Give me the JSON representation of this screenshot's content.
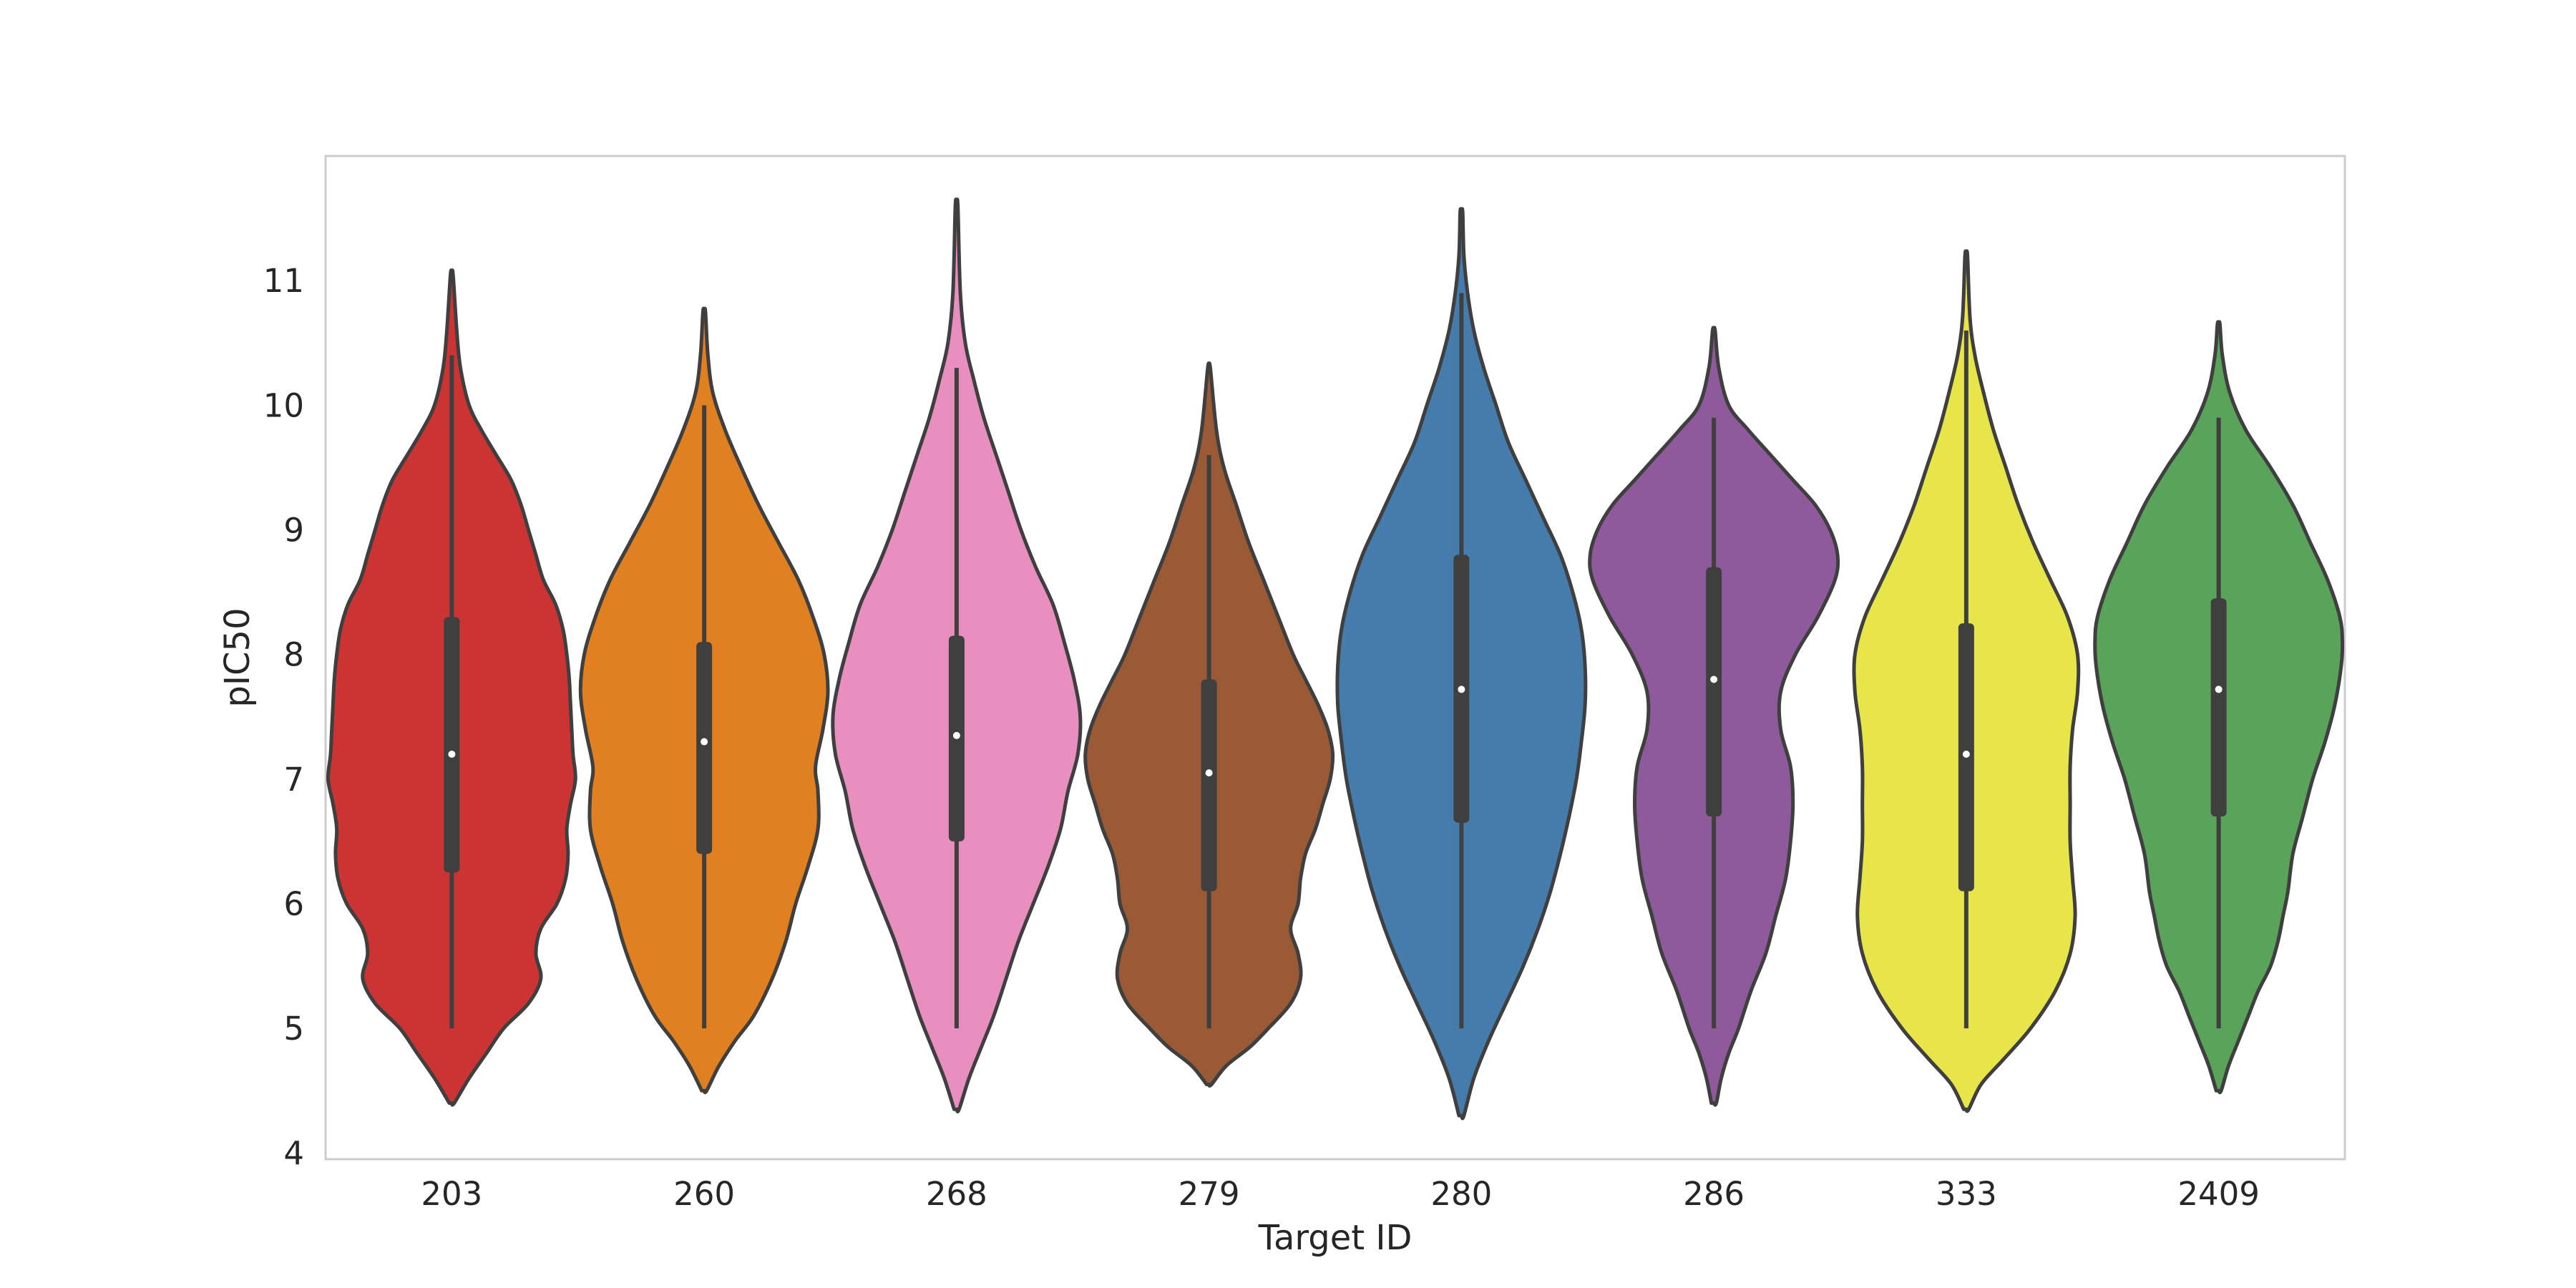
{
  "chart_data": {
    "type": "violin",
    "title": "",
    "xlabel": "Target ID",
    "ylabel": "pIC50",
    "ylim": [
      3.95,
      12.0
    ],
    "y_ticks": [
      4,
      5,
      6,
      7,
      8,
      9,
      10,
      11
    ],
    "grid": false,
    "legend": "none",
    "categories": [
      "203",
      "260",
      "268",
      "279",
      "280",
      "286",
      "333",
      "2409"
    ],
    "series": [
      {
        "category": "203",
        "color": "#cc3333",
        "min": 5.0,
        "q1": 6.25,
        "median": 7.2,
        "q3": 8.3,
        "max": 10.4,
        "density": [
          [
            4.4,
            0.02
          ],
          [
            4.6,
            0.14
          ],
          [
            4.8,
            0.28
          ],
          [
            5.0,
            0.42
          ],
          [
            5.2,
            0.62
          ],
          [
            5.4,
            0.72
          ],
          [
            5.6,
            0.68
          ],
          [
            5.8,
            0.72
          ],
          [
            6.0,
            0.85
          ],
          [
            6.2,
            0.92
          ],
          [
            6.4,
            0.94
          ],
          [
            6.6,
            0.93
          ],
          [
            6.8,
            0.96
          ],
          [
            7.0,
            1.0
          ],
          [
            7.2,
            0.98
          ],
          [
            7.4,
            0.97
          ],
          [
            7.6,
            0.96
          ],
          [
            7.8,
            0.95
          ],
          [
            8.0,
            0.93
          ],
          [
            8.2,
            0.9
          ],
          [
            8.4,
            0.84
          ],
          [
            8.6,
            0.74
          ],
          [
            8.8,
            0.68
          ],
          [
            9.0,
            0.62
          ],
          [
            9.2,
            0.56
          ],
          [
            9.4,
            0.48
          ],
          [
            9.6,
            0.36
          ],
          [
            9.8,
            0.24
          ],
          [
            10.0,
            0.14
          ],
          [
            10.3,
            0.07
          ],
          [
            10.6,
            0.04
          ],
          [
            11.05,
            0.01
          ]
        ]
      },
      {
        "category": "260",
        "color": "#e08020",
        "min": 5.0,
        "q1": 6.4,
        "median": 7.3,
        "q3": 8.1,
        "max": 10.0,
        "density": [
          [
            4.5,
            0.02
          ],
          [
            4.7,
            0.12
          ],
          [
            4.9,
            0.25
          ],
          [
            5.1,
            0.4
          ],
          [
            5.4,
            0.55
          ],
          [
            5.7,
            0.66
          ],
          [
            6.0,
            0.74
          ],
          [
            6.3,
            0.84
          ],
          [
            6.6,
            0.92
          ],
          [
            6.9,
            0.92
          ],
          [
            7.1,
            0.9
          ],
          [
            7.4,
            0.96
          ],
          [
            7.7,
            1.0
          ],
          [
            8.0,
            0.97
          ],
          [
            8.3,
            0.88
          ],
          [
            8.6,
            0.76
          ],
          [
            8.9,
            0.6
          ],
          [
            9.2,
            0.44
          ],
          [
            9.5,
            0.3
          ],
          [
            9.8,
            0.17
          ],
          [
            10.1,
            0.07
          ],
          [
            10.4,
            0.03
          ],
          [
            10.75,
            0.01
          ]
        ]
      },
      {
        "category": "268",
        "color": "#e88fbf",
        "min": 5.0,
        "q1": 6.5,
        "median": 7.35,
        "q3": 8.15,
        "max": 10.3,
        "density": [
          [
            4.35,
            0.02
          ],
          [
            4.6,
            0.1
          ],
          [
            4.85,
            0.2
          ],
          [
            5.1,
            0.3
          ],
          [
            5.4,
            0.4
          ],
          [
            5.7,
            0.5
          ],
          [
            6.0,
            0.62
          ],
          [
            6.3,
            0.74
          ],
          [
            6.6,
            0.84
          ],
          [
            6.9,
            0.9
          ],
          [
            7.2,
            0.98
          ],
          [
            7.5,
            1.0
          ],
          [
            7.8,
            0.95
          ],
          [
            8.1,
            0.87
          ],
          [
            8.4,
            0.78
          ],
          [
            8.7,
            0.64
          ],
          [
            9.0,
            0.52
          ],
          [
            9.3,
            0.42
          ],
          [
            9.6,
            0.32
          ],
          [
            9.9,
            0.22
          ],
          [
            10.2,
            0.14
          ],
          [
            10.5,
            0.07
          ],
          [
            10.9,
            0.03
          ],
          [
            11.6,
            0.01
          ]
        ]
      },
      {
        "category": "279",
        "color": "#9a5a35",
        "min": 5.0,
        "q1": 6.1,
        "median": 7.05,
        "q3": 7.8,
        "max": 9.6,
        "density": [
          [
            4.55,
            0.02
          ],
          [
            4.7,
            0.14
          ],
          [
            4.85,
            0.33
          ],
          [
            5.0,
            0.48
          ],
          [
            5.2,
            0.66
          ],
          [
            5.4,
            0.74
          ],
          [
            5.6,
            0.72
          ],
          [
            5.8,
            0.66
          ],
          [
            6.0,
            0.72
          ],
          [
            6.2,
            0.74
          ],
          [
            6.4,
            0.78
          ],
          [
            6.6,
            0.86
          ],
          [
            6.8,
            0.92
          ],
          [
            7.0,
            0.98
          ],
          [
            7.2,
            1.0
          ],
          [
            7.4,
            0.96
          ],
          [
            7.6,
            0.88
          ],
          [
            7.8,
            0.78
          ],
          [
            8.0,
            0.68
          ],
          [
            8.3,
            0.56
          ],
          [
            8.6,
            0.44
          ],
          [
            8.9,
            0.32
          ],
          [
            9.2,
            0.22
          ],
          [
            9.5,
            0.12
          ],
          [
            9.8,
            0.06
          ],
          [
            10.3,
            0.01
          ]
        ]
      },
      {
        "category": "280",
        "color": "#467cac",
        "min": 5.0,
        "q1": 6.65,
        "median": 7.72,
        "q3": 8.8,
        "max": 10.9,
        "density": [
          [
            4.3,
            0.02
          ],
          [
            4.6,
            0.1
          ],
          [
            4.9,
            0.22
          ],
          [
            5.2,
            0.36
          ],
          [
            5.5,
            0.5
          ],
          [
            5.8,
            0.62
          ],
          [
            6.1,
            0.72
          ],
          [
            6.4,
            0.8
          ],
          [
            6.7,
            0.87
          ],
          [
            7.0,
            0.93
          ],
          [
            7.3,
            0.97
          ],
          [
            7.6,
            1.0
          ],
          [
            7.9,
            1.0
          ],
          [
            8.2,
            0.97
          ],
          [
            8.5,
            0.9
          ],
          [
            8.8,
            0.8
          ],
          [
            9.1,
            0.66
          ],
          [
            9.4,
            0.52
          ],
          [
            9.7,
            0.38
          ],
          [
            10.0,
            0.28
          ],
          [
            10.3,
            0.18
          ],
          [
            10.6,
            0.1
          ],
          [
            10.9,
            0.05
          ],
          [
            11.2,
            0.02
          ],
          [
            11.55,
            0.01
          ]
        ]
      },
      {
        "category": "286",
        "color": "#8e5a9b",
        "min": 5.0,
        "q1": 6.7,
        "median": 7.8,
        "q3": 8.7,
        "max": 9.9,
        "density": [
          [
            4.4,
            0.02
          ],
          [
            4.6,
            0.06
          ],
          [
            4.8,
            0.12
          ],
          [
            5.0,
            0.2
          ],
          [
            5.3,
            0.3
          ],
          [
            5.6,
            0.42
          ],
          [
            5.9,
            0.5
          ],
          [
            6.2,
            0.58
          ],
          [
            6.5,
            0.62
          ],
          [
            6.8,
            0.64
          ],
          [
            7.1,
            0.62
          ],
          [
            7.4,
            0.54
          ],
          [
            7.7,
            0.54
          ],
          [
            8.0,
            0.66
          ],
          [
            8.3,
            0.84
          ],
          [
            8.6,
            0.98
          ],
          [
            8.8,
            1.0
          ],
          [
            9.0,
            0.94
          ],
          [
            9.2,
            0.82
          ],
          [
            9.4,
            0.64
          ],
          [
            9.6,
            0.46
          ],
          [
            9.8,
            0.28
          ],
          [
            10.0,
            0.12
          ],
          [
            10.3,
            0.04
          ],
          [
            10.6,
            0.01
          ]
        ]
      },
      {
        "category": "333",
        "color": "#e8e54a",
        "min": 5.0,
        "q1": 6.1,
        "median": 7.2,
        "q3": 8.25,
        "max": 10.6,
        "density": [
          [
            4.35,
            0.02
          ],
          [
            4.55,
            0.12
          ],
          [
            4.75,
            0.3
          ],
          [
            5.0,
            0.52
          ],
          [
            5.3,
            0.72
          ],
          [
            5.6,
            0.84
          ],
          [
            5.9,
            0.88
          ],
          [
            6.2,
            0.86
          ],
          [
            6.5,
            0.84
          ],
          [
            6.8,
            0.84
          ],
          [
            7.1,
            0.84
          ],
          [
            7.4,
            0.86
          ],
          [
            7.7,
            0.9
          ],
          [
            8.0,
            0.9
          ],
          [
            8.3,
            0.82
          ],
          [
            8.6,
            0.68
          ],
          [
            8.9,
            0.54
          ],
          [
            9.2,
            0.42
          ],
          [
            9.5,
            0.32
          ],
          [
            9.8,
            0.22
          ],
          [
            10.1,
            0.14
          ],
          [
            10.4,
            0.07
          ],
          [
            10.7,
            0.03
          ],
          [
            11.2,
            0.01
          ]
        ]
      },
      {
        "category": "2409",
        "color": "#5aa35a",
        "min": 5.0,
        "q1": 6.7,
        "median": 7.72,
        "q3": 8.45,
        "max": 9.9,
        "density": [
          [
            4.5,
            0.02
          ],
          [
            4.7,
            0.08
          ],
          [
            4.9,
            0.16
          ],
          [
            5.1,
            0.24
          ],
          [
            5.3,
            0.32
          ],
          [
            5.5,
            0.42
          ],
          [
            5.7,
            0.48
          ],
          [
            5.9,
            0.52
          ],
          [
            6.1,
            0.56
          ],
          [
            6.4,
            0.6
          ],
          [
            6.7,
            0.68
          ],
          [
            7.0,
            0.76
          ],
          [
            7.3,
            0.86
          ],
          [
            7.6,
            0.94
          ],
          [
            7.9,
            0.99
          ],
          [
            8.1,
            1.0
          ],
          [
            8.3,
            0.98
          ],
          [
            8.6,
            0.88
          ],
          [
            8.9,
            0.74
          ],
          [
            9.2,
            0.6
          ],
          [
            9.5,
            0.42
          ],
          [
            9.8,
            0.22
          ],
          [
            10.1,
            0.09
          ],
          [
            10.4,
            0.03
          ],
          [
            10.65,
            0.01
          ]
        ]
      }
    ]
  }
}
